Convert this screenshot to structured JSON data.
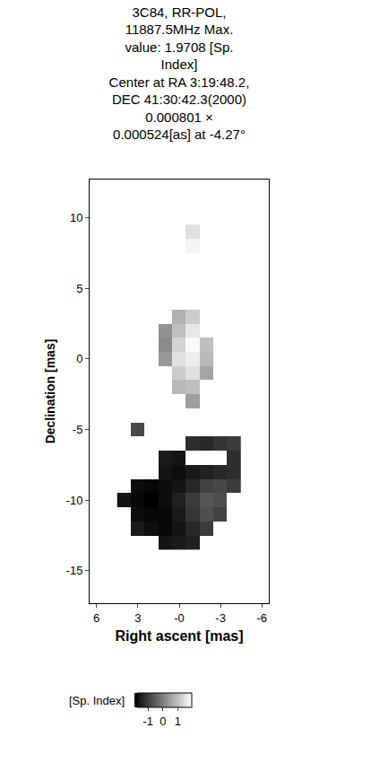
{
  "chart_data": {
    "type": "heatmap",
    "title": "3C84, RR-POL,\n11887.5MHz Max.\nvalue: 1.9708 [Sp.\nIndex]\nCenter at RA 3:19:48.2,\nDEC 41:30:42.3(2000)\n0.000801 ×\n0.000524[as] at -4.27°",
    "xlabel": "Right ascent [mas]",
    "ylabel": "Declination [mas]",
    "x": [
      -4,
      -3,
      -2,
      -1,
      0,
      1,
      2,
      3,
      4
    ],
    "y": [
      -13,
      -12,
      -11,
      -10,
      -9,
      -8,
      -7,
      -6,
      -5,
      -4,
      -3,
      -2,
      -1,
      0,
      1,
      2,
      3,
      4,
      5,
      6,
      7,
      8,
      9
    ],
    "z": [
      [
        null,
        null,
        null,
        -1.4,
        -1.5,
        -1.6,
        null,
        null,
        null
      ],
      [
        null,
        null,
        -1.0,
        -1.3,
        -1.6,
        -1.8,
        -1.7,
        -1.5,
        null
      ],
      [
        null,
        -0.9,
        -0.7,
        -1.1,
        -1.5,
        -1.8,
        -1.8,
        -1.7,
        null
      ],
      [
        null,
        -0.7,
        -0.6,
        -1.0,
        -1.4,
        -1.7,
        -1.9,
        -1.8,
        -1.6
      ],
      [
        -1.0,
        -0.8,
        -0.9,
        -1.3,
        -1.6,
        -1.7,
        -1.8,
        -1.7,
        null
      ],
      [
        -1.2,
        -1.3,
        -1.4,
        -1.5,
        -1.7,
        -1.6,
        null,
        null,
        null
      ],
      [
        -1.2,
        null,
        null,
        null,
        -1.6,
        -1.5,
        null,
        null,
        null
      ],
      [
        -1.0,
        -1.1,
        -1.3,
        -1.2,
        null,
        null,
        null,
        null,
        null
      ],
      [
        null,
        null,
        null,
        null,
        null,
        null,
        null,
        -0.8,
        null
      ],
      [
        null,
        null,
        null,
        null,
        null,
        null,
        null,
        null,
        null
      ],
      [
        null,
        null,
        null,
        0.5,
        null,
        null,
        null,
        null,
        null
      ],
      [
        null,
        null,
        null,
        1.0,
        0.9,
        null,
        null,
        null,
        null
      ],
      [
        null,
        null,
        0.6,
        1.5,
        1.2,
        null,
        null,
        null,
        null
      ],
      [
        null,
        null,
        0.9,
        1.7,
        1.5,
        0.4,
        null,
        null,
        null
      ],
      [
        null,
        null,
        1.0,
        1.9,
        1.3,
        0.2,
        null,
        null,
        null
      ],
      [
        null,
        null,
        null,
        1.6,
        1.0,
        0.3,
        null,
        null,
        null
      ],
      [
        null,
        null,
        null,
        1.2,
        0.8,
        null,
        null,
        null,
        null
      ],
      [
        null,
        null,
        null,
        null,
        null,
        null,
        null,
        null,
        null
      ],
      [
        null,
        null,
        null,
        null,
        null,
        null,
        null,
        null,
        null
      ],
      [
        null,
        null,
        null,
        null,
        null,
        null,
        null,
        null,
        null
      ],
      [
        null,
        null,
        null,
        null,
        null,
        null,
        null,
        null,
        null
      ],
      [
        null,
        null,
        null,
        1.8,
        null,
        null,
        null,
        null,
        null
      ],
      [
        null,
        null,
        null,
        1.5,
        null,
        null,
        null,
        null,
        null
      ]
    ],
    "xlim": [
      6.5,
      -6.5
    ],
    "xticks": [
      6,
      3,
      {
        "value": 0,
        "label": "-0"
      },
      -3,
      -6
    ],
    "ylim": [
      -17.3,
      12.7
    ],
    "yticks": [
      -15,
      -10,
      -5,
      0,
      5,
      10
    ],
    "grid": false,
    "colorbar": {
      "range": [
        -1.9,
        1.97
      ],
      "ticks": [
        -1,
        0,
        1
      ],
      "title": "[Sp. Index]"
    }
  }
}
